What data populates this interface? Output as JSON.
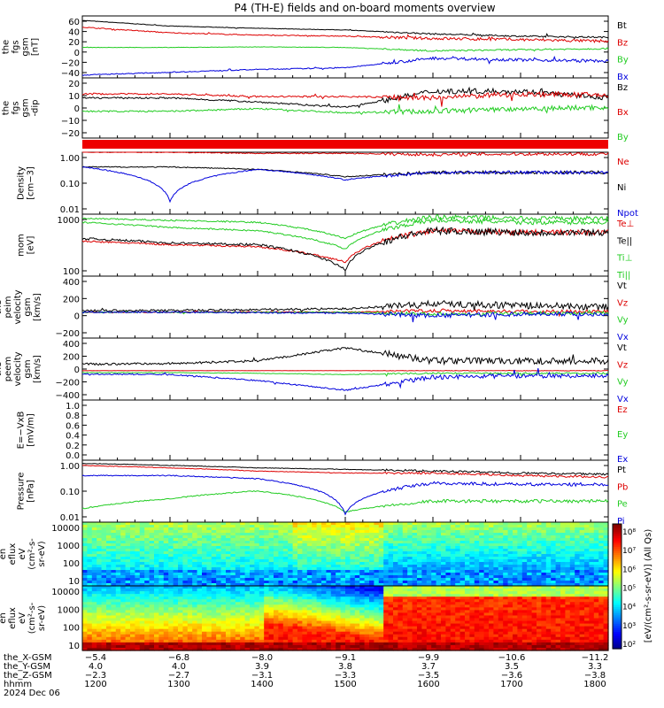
{
  "title": "P4 (TH-E) fields and on-board moments overview",
  "colors": {
    "black": "#000000",
    "red": "#dd0000",
    "green": "#22cc22",
    "blue": "#0000dd"
  },
  "panels": [
    {
      "id": "fgs-gsm",
      "ylabel": [
        "the",
        "fgs",
        "gsm",
        "[nT]"
      ],
      "yticks": [
        "60",
        "40",
        "20",
        "0",
        "−20",
        "−40"
      ],
      "legend": [
        {
          "text": "Bt",
          "color": "black"
        },
        {
          "text": "Bz",
          "color": "red"
        },
        {
          "text": "By",
          "color": "green"
        },
        {
          "text": "Bx",
          "color": "blue"
        }
      ]
    },
    {
      "id": "fgs-dgsm",
      "ylabel": [
        "the",
        "fgs",
        "gsm",
        "-dip"
      ],
      "yticks": [
        "20",
        "10",
        "0",
        "−10",
        "−20"
      ],
      "legend": [
        {
          "text": "Bz",
          "color": "black"
        },
        {
          "text": "Bx",
          "color": "red"
        },
        {
          "text": "By",
          "color": "green"
        }
      ]
    },
    {
      "id": "density",
      "ylabel": [
        "Density",
        "[cm−3]"
      ],
      "yticks": [
        "1.00",
        "0.10",
        "0.01"
      ],
      "legend": [
        {
          "text": "Ne",
          "color": "red"
        },
        {
          "text": "Ni",
          "color": "black"
        },
        {
          "text": "Npot",
          "color": "blue"
        }
      ]
    },
    {
      "id": "temp",
      "ylabel": [
        "mom",
        "[eV]"
      ],
      "yticks": [
        "1000",
        "100"
      ],
      "legend": [
        {
          "text": "Te⊥",
          "color": "red"
        },
        {
          "text": "Te||",
          "color": "black"
        },
        {
          "text": "Ti⊥",
          "color": "green"
        },
        {
          "text": "Ti||",
          "color": "green"
        }
      ]
    },
    {
      "id": "peim",
      "ylabel": [
        "the",
        "peim",
        "velocity",
        "gsm",
        "[km/s]"
      ],
      "yticks": [
        "400",
        "200",
        "0",
        "−200"
      ],
      "legend": [
        {
          "text": "Vt",
          "color": "black"
        },
        {
          "text": "Vz",
          "color": "red"
        },
        {
          "text": "Vy",
          "color": "green"
        },
        {
          "text": "Vx",
          "color": "blue"
        }
      ]
    },
    {
      "id": "peem",
      "ylabel": [
        "the",
        "peem",
        "velocity",
        "gsm",
        "[km/s]"
      ],
      "yticks": [
        "400",
        "200",
        "0",
        "−200",
        "−400"
      ],
      "legend": [
        {
          "text": "Vt",
          "color": "black"
        },
        {
          "text": "Vz",
          "color": "red"
        },
        {
          "text": "Vy",
          "color": "green"
        },
        {
          "text": "Vx",
          "color": "blue"
        }
      ]
    },
    {
      "id": "efield",
      "ylabel": [
        "E=−VxB",
        "[mV/m]"
      ],
      "yticks": [
        "1.0",
        "0.8",
        "0.6",
        "0.4",
        "0.2",
        "0.0"
      ],
      "legend": [
        {
          "text": "Ez",
          "color": "red"
        },
        {
          "text": "Ey",
          "color": "green"
        },
        {
          "text": "Ex",
          "color": "blue"
        }
      ]
    },
    {
      "id": "pressure",
      "ylabel": [
        "Pressure",
        "[nPa]"
      ],
      "yticks": [
        "1.00",
        "0.10",
        "0.01"
      ],
      "legend": [
        {
          "text": "Pt",
          "color": "black"
        },
        {
          "text": "Pb",
          "color": "red"
        },
        {
          "text": "Pe",
          "color": "green"
        },
        {
          "text": "Pi",
          "color": "blue"
        }
      ]
    },
    {
      "id": "peir",
      "ylabel": [
        "the",
        "peir",
        "en",
        "eflux",
        "eV",
        "(cm²-s-",
        "sr-eV)"
      ],
      "yticks": [
        "10000",
        "1000",
        "100",
        "10"
      ],
      "legend": []
    },
    {
      "id": "peer",
      "ylabel": [
        "the",
        "peer",
        "en",
        "eflux",
        "eV",
        "(cm²-s-",
        "sr-eV)"
      ],
      "yticks": [
        "10000",
        "1000",
        "100",
        "10"
      ],
      "legend": []
    }
  ],
  "colorbar": {
    "ticks": [
      "10⁸",
      "10⁷",
      "10⁶",
      "10⁵",
      "10⁴",
      "10³",
      "10²"
    ],
    "label": "[eV/(cm²-s-sr-eV)] (All Qs)"
  },
  "axis": {
    "rows": [
      {
        "label": "the_X-GSM",
        "values": [
          "−5.4",
          "−6.8",
          "−8.0",
          "−9.1",
          "−9.9",
          "−10.6",
          "−11.2"
        ]
      },
      {
        "label": "the_Y-GSM",
        "values": [
          "4.0",
          "4.0",
          "3.9",
          "3.8",
          "3.7",
          "3.5",
          "3.3"
        ]
      },
      {
        "label": "the_Z-GSM",
        "values": [
          "−2.3",
          "−2.7",
          "−3.1",
          "−3.3",
          "−3.5",
          "−3.6",
          "−3.8"
        ]
      },
      {
        "label": "hhmm",
        "values": [
          "1200",
          "1300",
          "1400",
          "1500",
          "1600",
          "1700",
          "1800"
        ]
      }
    ],
    "date": "2024 Dec 06"
  },
  "chart_data": {
    "type": "line",
    "x": [
      "1200",
      "1300",
      "1400",
      "1500",
      "1600",
      "1700",
      "1800"
    ],
    "xlabel": "hhmm",
    "panels": [
      {
        "name": "fgs-gsm",
        "ylim": [
          -40,
          70
        ],
        "series": [
          {
            "name": "Bt",
            "values": [
              62,
              52,
              48,
              45,
              38,
              34,
              32
            ]
          },
          {
            "name": "Bz",
            "values": [
              50,
              40,
              36,
              34,
              30,
              28,
              25
            ]
          },
          {
            "name": "By",
            "values": [
              14,
              14,
              15,
              14,
              8,
              10,
              12
            ]
          },
          {
            "name": "Bx",
            "values": [
              -35,
              -30,
              -25,
              -22,
              -5,
              -8,
              -10
            ]
          }
        ]
      },
      {
        "name": "fgs-gsm-dip",
        "ylim": [
          -25,
          20
        ],
        "series": [
          {
            "name": "Bz",
            "values": [
              5,
              5,
              2,
              -2,
              10,
              10,
              5
            ]
          },
          {
            "name": "Bx",
            "values": [
              8,
              8,
              6,
              6,
              5,
              8,
              7
            ]
          },
          {
            "name": "By",
            "values": [
              -5,
              -5,
              -3,
              -6,
              -5,
              -3,
              -2
            ]
          }
        ]
      },
      {
        "name": "density",
        "yscale": "log",
        "ylim": [
          0.006,
          2
        ],
        "series": [
          {
            "name": "Ne",
            "values": [
              2,
              2,
              1.8,
              1.8,
              1.6,
              1.7,
              1.7
            ]
          },
          {
            "name": "Ni",
            "values": [
              0.5,
              0.5,
              0.4,
              0.2,
              0.3,
              0.3,
              0.3
            ]
          },
          {
            "name": "Npot",
            "values": [
              0.5,
              0.02,
              0.4,
              0.15,
              0.3,
              0.3,
              0.3
            ]
          }
        ]
      },
      {
        "name": "temperature",
        "yscale": "log",
        "ylim": [
          100,
          6000
        ],
        "series": [
          {
            "name": "Te⊥",
            "values": [
              1000,
              800,
              700,
              250,
              2000,
              1800,
              1800
            ]
          },
          {
            "name": "Te||",
            "values": [
              1200,
              900,
              800,
              150,
              2000,
              1800,
              1800
            ]
          },
          {
            "name": "Ti⊥",
            "values": [
              3500,
              2500,
              2000,
              600,
              4000,
              3500,
              3500
            ]
          },
          {
            "name": "Ti||",
            "values": [
              4500,
              4000,
              3500,
              1200,
              5000,
              4500,
              4500
            ]
          }
        ]
      },
      {
        "name": "peim-velocity",
        "ylim": [
          -300,
          420
        ],
        "series": [
          {
            "name": "Vt",
            "values": [
              20,
              20,
              30,
              40,
              100,
              80,
              60
            ]
          },
          {
            "name": "Vz",
            "values": [
              0,
              0,
              5,
              0,
              20,
              10,
              10
            ]
          },
          {
            "name": "Vy",
            "values": [
              0,
              0,
              0,
              0,
              -20,
              -10,
              -10
            ]
          },
          {
            "name": "Vx",
            "values": [
              0,
              0,
              -5,
              -10,
              -40,
              -20,
              -20
            ]
          }
        ]
      },
      {
        "name": "peem-velocity",
        "ylim": [
          -450,
          500
        ],
        "series": [
          {
            "name": "Vt",
            "values": [
              100,
              110,
              150,
              350,
              150,
              150,
              150
            ]
          },
          {
            "name": "Vz",
            "values": [
              0,
              0,
              0,
              0,
              0,
              0,
              0
            ]
          },
          {
            "name": "Vy",
            "values": [
              -30,
              -30,
              -40,
              -60,
              -40,
              -40,
              -40
            ]
          },
          {
            "name": "Vx",
            "values": [
              -50,
              -60,
              -150,
              -300,
              -100,
              -80,
              -80
            ]
          }
        ]
      },
      {
        "name": "efield",
        "ylim": [
          0,
          1
        ],
        "series": []
      },
      {
        "name": "pressure",
        "yscale": "log",
        "ylim": [
          0.006,
          1.6
        ],
        "series": [
          {
            "name": "Pt",
            "values": [
              1.2,
              1.0,
              0.8,
              0.7,
              0.6,
              0.5,
              0.45
            ]
          },
          {
            "name": "Pb",
            "values": [
              1.0,
              0.8,
              0.6,
              0.5,
              0.5,
              0.4,
              0.35
            ]
          },
          {
            "name": "Pe",
            "values": [
              0.02,
              0.05,
              0.1,
              0.015,
              0.04,
              0.04,
              0.04
            ]
          },
          {
            "name": "Pi",
            "values": [
              0.4,
              0.4,
              0.3,
              0.012,
              0.2,
              0.18,
              0.18
            ]
          }
        ]
      }
    ]
  }
}
